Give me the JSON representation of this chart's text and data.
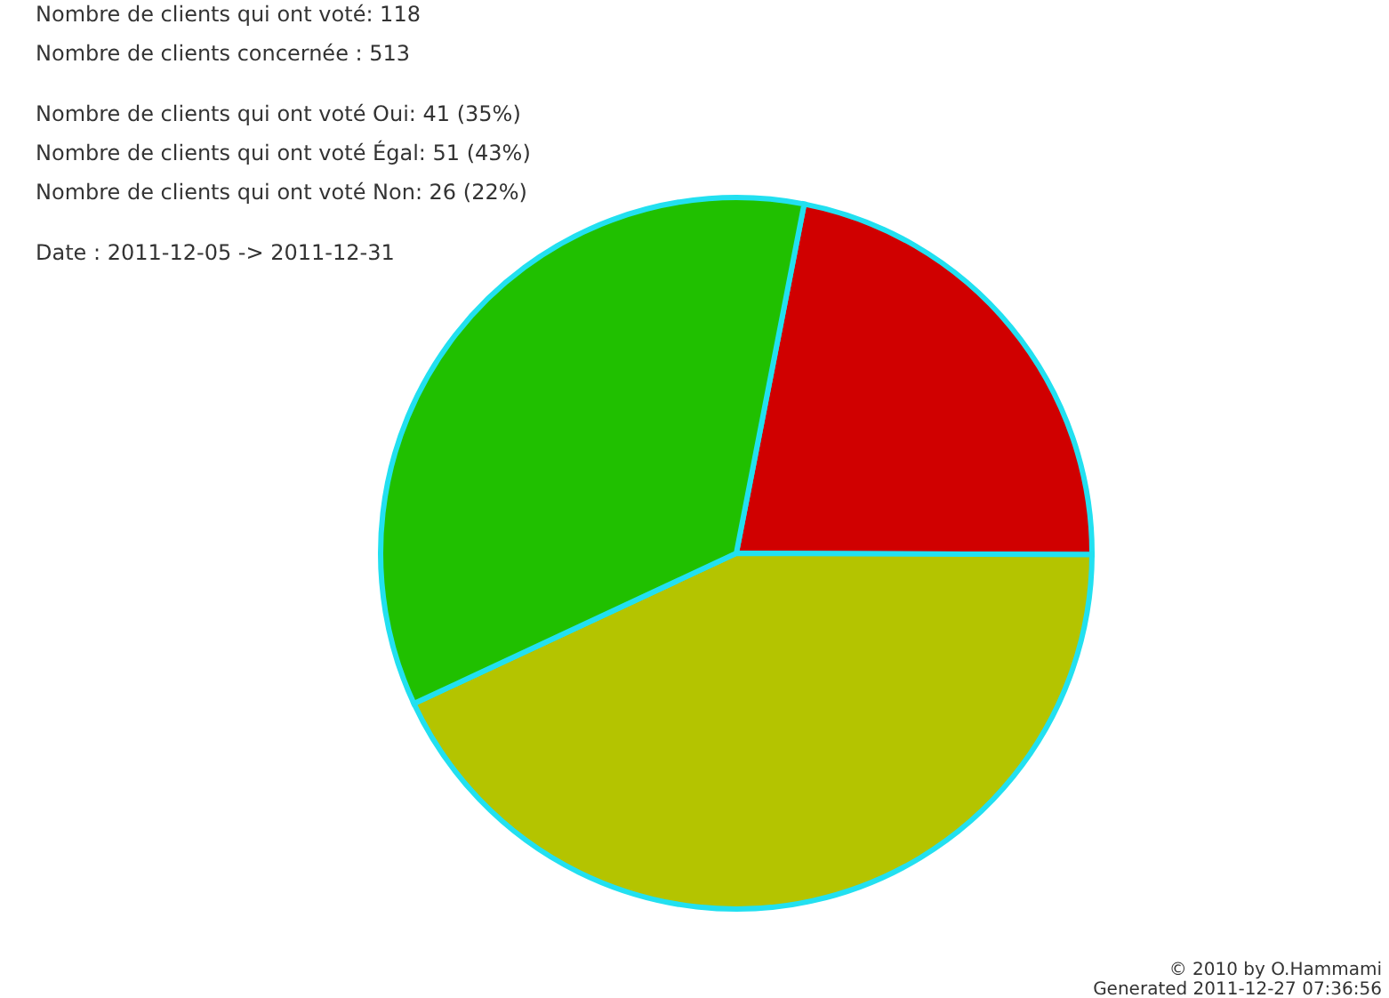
{
  "chart_data": {
    "type": "pie",
    "categories": [
      null,
      null,
      null
    ],
    "values": [
      22,
      43,
      35
    ],
    "colors": [
      "#d00000",
      "#b4c400",
      "#20c000"
    ],
    "annotations": [
      "Nombre de clients qui ont voté: 118",
      "Nombre de clients concernée : 513",
      "Nombre de clients qui ont voté Oui: 41 (35%)",
      "Nombre de clients qui ont voté Égal: 51 (43%)",
      "Nombre de clients qui ont voté Non: 26 (22%)",
      "Date : 2011-12-05 -> 2011-12-31",
      "© 2010 by O.Hammami",
      "Generated 2011-12-27 07:36:56"
    ]
  }
}
